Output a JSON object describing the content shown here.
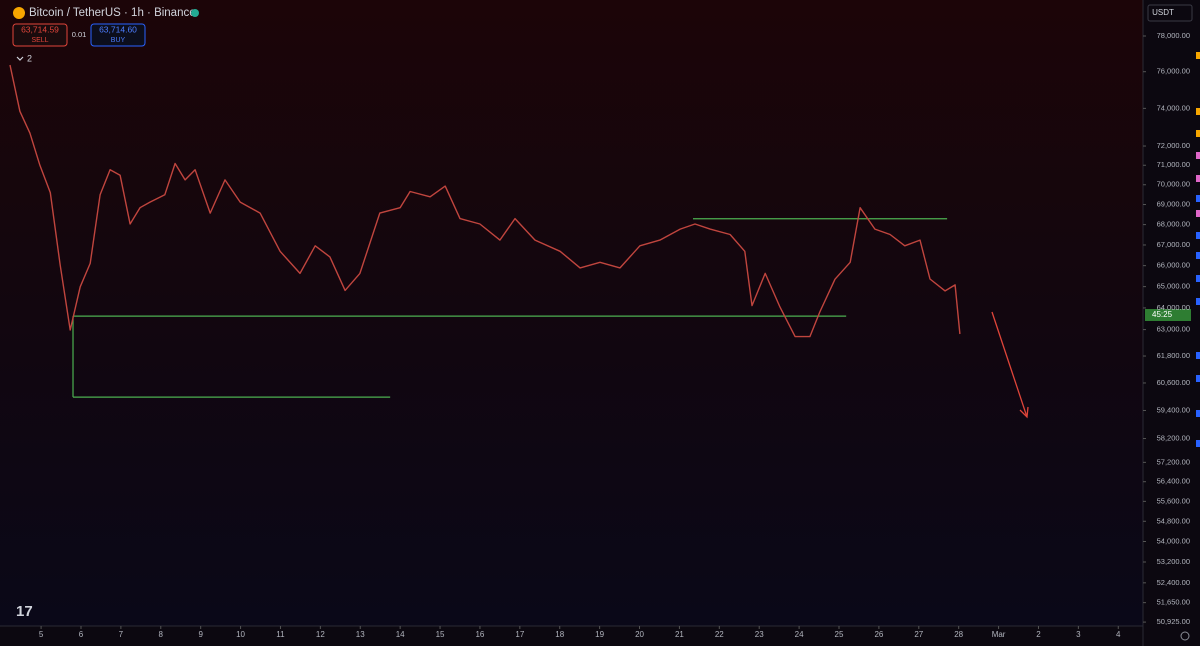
{
  "ui": {
    "symbol": "Bitcoin / TetherUS · 1h · Binance",
    "sell_price": "63,714.59",
    "sell": "SELL",
    "spread": "0.01",
    "buy_price": "63,714.60",
    "buy": "BUY",
    "indicators_count": "2",
    "currency": "USDT",
    "countdown": "45:25"
  },
  "chart_data": {
    "type": "line",
    "log_scale": true,
    "grid": false,
    "color": "#c0453e",
    "xlim": [
      3.97,
      32.62
    ],
    "ylim": [
      50780,
      80070
    ],
    "xticks": [
      5,
      6,
      7,
      8,
      9,
      10,
      11,
      12,
      13,
      14,
      15,
      16,
      17,
      18,
      19,
      20,
      21,
      22,
      23,
      24,
      25,
      26,
      27,
      28,
      {
        "value": 29,
        "label": "Mar"
      },
      {
        "value": 30,
        "label": "2"
      },
      {
        "value": 31,
        "label": "3"
      },
      {
        "value": 32,
        "label": "4"
      }
    ],
    "yticks": [
      {
        "value": 78000,
        "label": "78,000.00"
      },
      {
        "value": 76000,
        "label": "76,000.00"
      },
      {
        "value": 74000,
        "label": "74,000.00"
      },
      {
        "value": 72000,
        "label": "72,000.00"
      },
      {
        "value": 71000,
        "label": "71,000.00"
      },
      {
        "value": 70000,
        "label": "70,000.00"
      },
      {
        "value": 69000,
        "label": "69,000.00"
      },
      {
        "value": 68000,
        "label": "68,000.00"
      },
      {
        "value": 67000,
        "label": "67,000.00"
      },
      {
        "value": 66000,
        "label": "66,000.00"
      },
      {
        "value": 65000,
        "label": "65,000.00"
      },
      {
        "value": 64000,
        "label": "64,000.00"
      },
      {
        "value": 63000,
        "label": "63,000.00"
      },
      {
        "value": 61800,
        "label": "61,800.00"
      },
      {
        "value": 60600,
        "label": "60,600.00"
      },
      {
        "value": 59400,
        "label": "59,400.00"
      },
      {
        "value": 58200,
        "label": "58,200.00"
      },
      {
        "value": 57200,
        "label": "57,200.00"
      },
      {
        "value": 56400,
        "label": "56,400.00"
      },
      {
        "value": 55600,
        "label": "55,600.00"
      },
      {
        "value": 54800,
        "label": "54,800.00"
      },
      {
        "value": 54000,
        "label": "54,000.00"
      },
      {
        "value": 53200,
        "label": "53,200.00"
      },
      {
        "value": 52400,
        "label": "52,400.00"
      },
      {
        "value": 51650,
        "label": "51,650.00"
      },
      {
        "value": 50925,
        "label": "50,925.00"
      }
    ],
    "x": [
      4.22,
      4.47,
      4.72,
      4.97,
      5.23,
      5.48,
      5.73,
      5.98,
      6.23,
      6.48,
      6.73,
      6.98,
      7.23,
      7.48,
      7.73,
      8.1,
      8.36,
      8.61,
      8.86,
      9.24,
      9.61,
      9.99,
      10.49,
      10.99,
      11.49,
      11.87,
      12.24,
      12.62,
      12.99,
      13.49,
      14.0,
      14.25,
      14.75,
      15.13,
      15.5,
      16.0,
      16.5,
      16.88,
      17.38,
      18.01,
      18.51,
      19.01,
      19.51,
      20.01,
      20.51,
      21.02,
      21.39,
      21.77,
      22.27,
      22.64,
      22.82,
      23.15,
      23.52,
      23.9,
      24.27,
      24.52,
      24.9,
      25.28,
      25.53,
      25.9,
      26.28,
      26.65,
      27.03,
      27.28,
      27.66,
      27.91,
      28.03
    ],
    "values": [
      76370,
      73840,
      72680,
      71000,
      69600,
      66020,
      62980,
      64990,
      66110,
      69490,
      70770,
      70490,
      68030,
      68840,
      69120,
      69490,
      71090,
      70250,
      70770,
      68570,
      70250,
      69120,
      68570,
      66690,
      65630,
      66960,
      66420,
      64820,
      65630,
      68570,
      68840,
      69660,
      69390,
      69930,
      68300,
      68030,
      67240,
      68300,
      67240,
      66690,
      65890,
      66160,
      65890,
      66960,
      67240,
      67780,
      68030,
      67780,
      67510,
      66690,
      64110,
      65630,
      64040,
      62680,
      62680,
      63810,
      65350,
      66160,
      68840,
      67780,
      67510,
      66960,
      67240,
      65360,
      64800,
      65080,
      62800
    ],
    "levels": [
      {
        "value": 63620,
        "x": [
          5.8,
          25.18
        ],
        "color": "#4caf50"
      },
      {
        "value": 68290,
        "x": [
          21.34,
          27.71
        ],
        "color": "#4caf50"
      },
      {
        "value": 59980,
        "x": [
          5.8,
          13.75
        ],
        "color": "#4caf50"
      }
    ]
  }
}
